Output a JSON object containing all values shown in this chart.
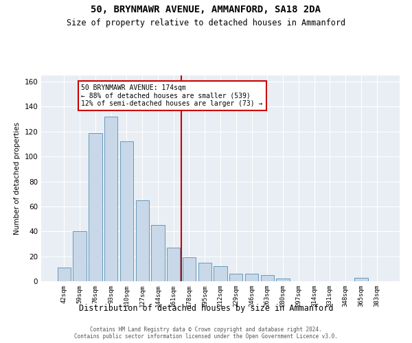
{
  "title1": "50, BRYNMAWR AVENUE, AMMANFORD, SA18 2DA",
  "title2": "Size of property relative to detached houses in Ammanford",
  "xlabel": "Distribution of detached houses by size in Ammanford",
  "ylabel": "Number of detached properties",
  "bar_color": "#c8d8e8",
  "bar_edge_color": "#6699bb",
  "categories": [
    "42sqm",
    "59sqm",
    "76sqm",
    "93sqm",
    "110sqm",
    "127sqm",
    "144sqm",
    "161sqm",
    "178sqm",
    "195sqm",
    "212sqm",
    "229sqm",
    "246sqm",
    "263sqm",
    "280sqm",
    "297sqm",
    "314sqm",
    "331sqm",
    "348sqm",
    "365sqm",
    "383sqm"
  ],
  "values": [
    11,
    40,
    119,
    132,
    112,
    65,
    45,
    27,
    19,
    15,
    12,
    6,
    6,
    5,
    2,
    0,
    0,
    0,
    0,
    3,
    0
  ],
  "vline_color": "#cc0000",
  "vline_x_index": 7.5,
  "annotation_title": "50 BRYNMAWR AVENUE: 174sqm",
  "annotation_line1": "← 88% of detached houses are smaller (539)",
  "annotation_line2": "12% of semi-detached houses are larger (73) →",
  "annotation_box_color": "#cc0000",
  "ylim": [
    0,
    165
  ],
  "yticks": [
    0,
    20,
    40,
    60,
    80,
    100,
    120,
    140,
    160
  ],
  "footer1": "Contains HM Land Registry data © Crown copyright and database right 2024.",
  "footer2": "Contains public sector information licensed under the Open Government Licence v3.0.",
  "background_color": "#e8eef4"
}
